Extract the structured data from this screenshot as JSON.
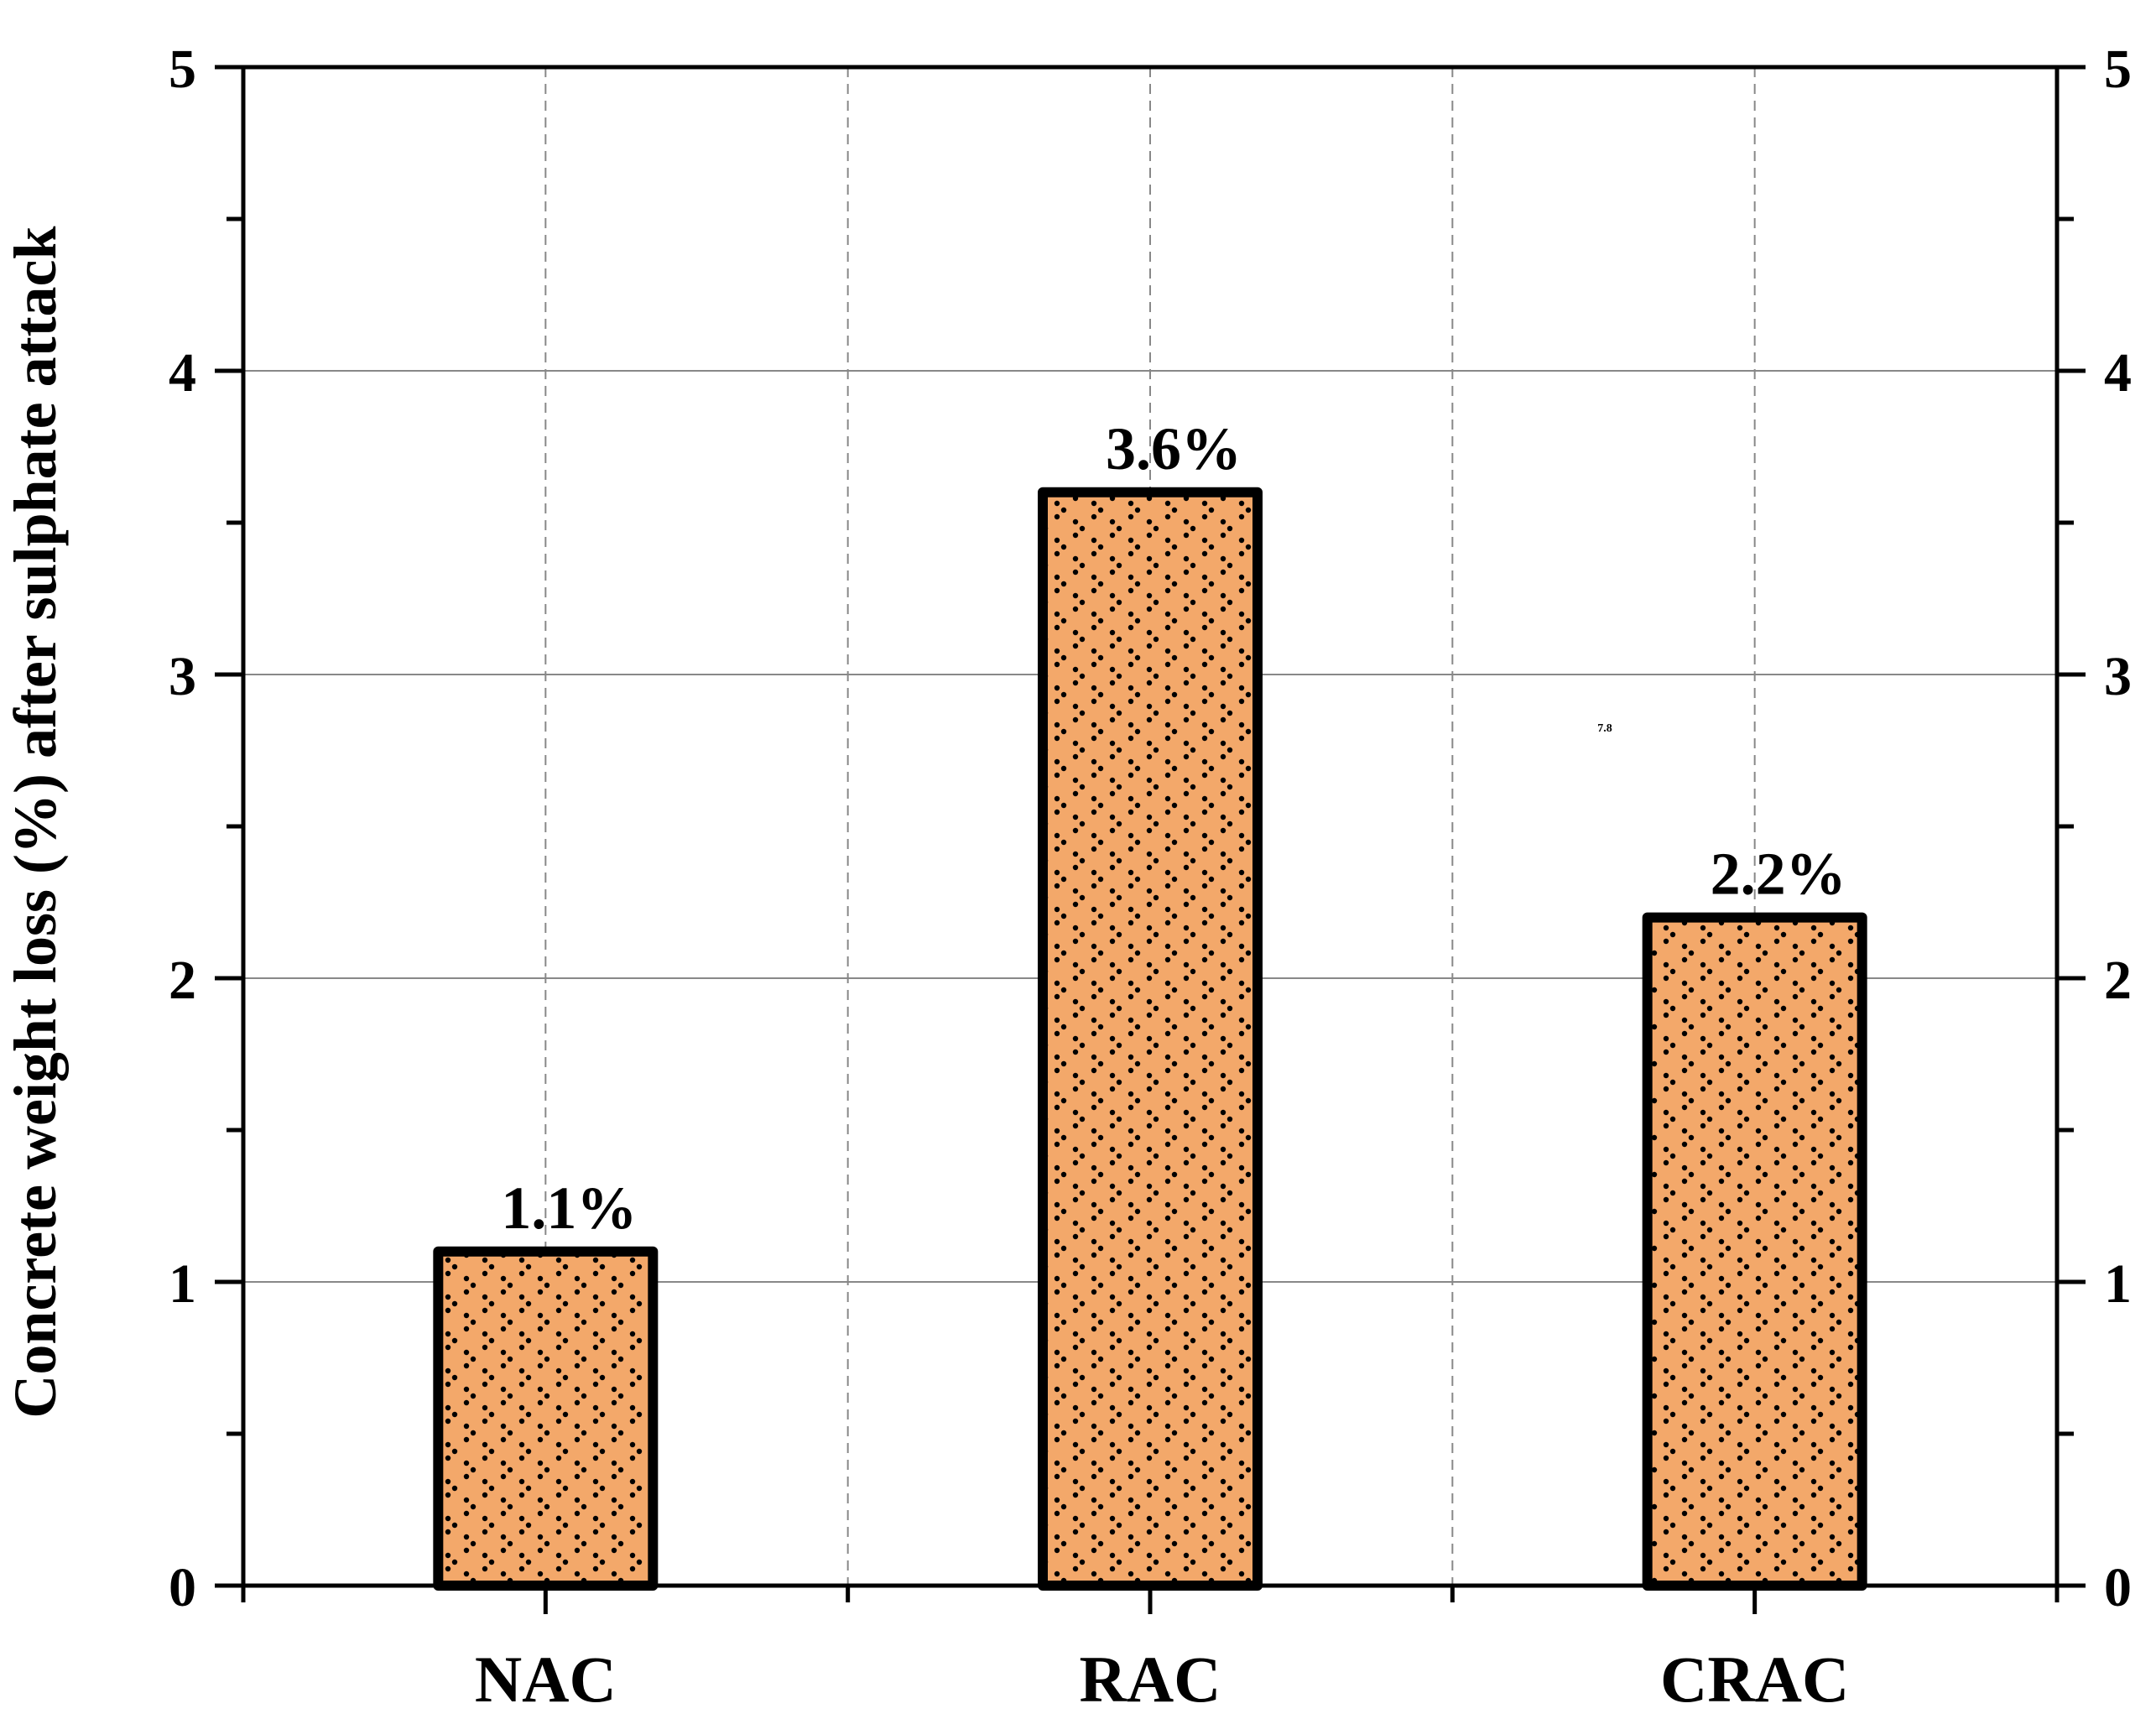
{
  "chart_data": {
    "type": "bar",
    "categories": [
      "NAC",
      "RAC",
      "CRAC"
    ],
    "values": [
      1.1,
      3.6,
      2.2
    ],
    "data_labels": [
      "1.1%",
      "3.6%",
      "2.2%"
    ],
    "ylabel": "Concrete weight loss (%) after sulphate attack",
    "ylim": [
      0,
      5
    ],
    "yticks": [
      0,
      1,
      2,
      3,
      4,
      5
    ],
    "ytick_labels": [
      "0",
      "1",
      "2",
      "3",
      "4",
      "5"
    ],
    "right_axis_mirrored": true,
    "grid": true,
    "stray_text": "7.8"
  },
  "colors": {
    "bar_fill": "#F3A86A",
    "bar_outline": "#000000",
    "pattern_dots": "#000000",
    "grid": "#888888",
    "axis": "#000000"
  }
}
